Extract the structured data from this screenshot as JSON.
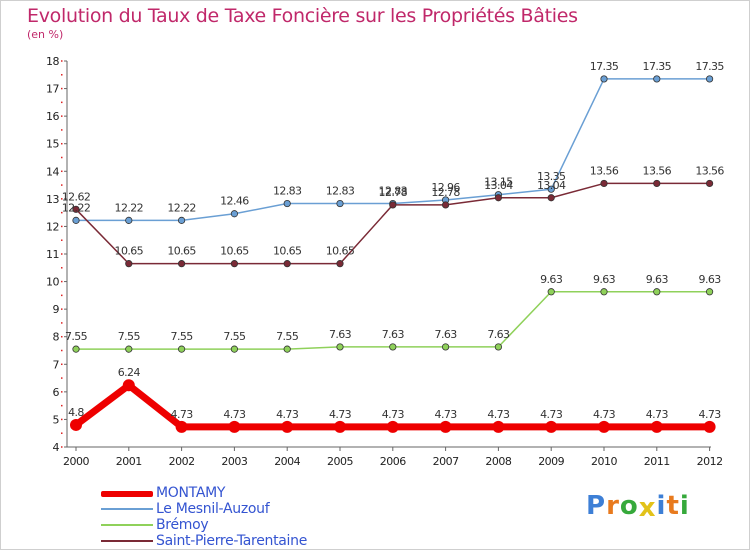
{
  "title": "Evolution du Taux de Taxe Foncière sur les Propriétés Bâties",
  "subtitle": "(en %)",
  "logo": {
    "letters": [
      {
        "ch": "P",
        "color": "#3d7fd6"
      },
      {
        "ch": "r",
        "color": "#e87a1e"
      },
      {
        "ch": "o",
        "color": "#36a93b"
      },
      {
        "ch": "x",
        "color": "#e2c21a"
      },
      {
        "ch": "i",
        "color": "#3d7fd6"
      },
      {
        "ch": "t",
        "color": "#e87a1e"
      },
      {
        "ch": "i",
        "color": "#36a93b"
      }
    ]
  },
  "chart_data": {
    "type": "line",
    "title": "Evolution du Taux de Taxe Foncière sur les Propriétés Bâties",
    "ylabel": "(en %)",
    "xlabel": "",
    "x": [
      "2000",
      "2001",
      "2002",
      "2003",
      "2004",
      "2005",
      "2006",
      "2007",
      "2008",
      "2009",
      "2010",
      "2011",
      "2012"
    ],
    "ylim": [
      4,
      18
    ],
    "yticks": [
      "4",
      "5",
      "6",
      "7",
      "8",
      "9",
      "10",
      "11",
      "12",
      "13",
      "14",
      "15",
      "16",
      "17",
      "18"
    ],
    "grid": false,
    "legend_position": "bottom-left",
    "series": [
      {
        "name": "MONTAMY",
        "color": "#ee0000",
        "values": [
          4.8,
          6.24,
          4.73,
          4.73,
          4.73,
          4.73,
          4.73,
          4.73,
          4.73,
          4.73,
          4.73,
          4.73,
          4.73
        ],
        "labels": [
          "4.8",
          "6.24",
          "4.73",
          "4.73",
          "4.73",
          "4.73",
          "4.73",
          "4.73",
          "4.73",
          "4.73",
          "4.73",
          "4.73",
          "4.73"
        ]
      },
      {
        "name": "Le Mesnil-Auzouf",
        "color": "#6a9fd4",
        "values": [
          12.22,
          12.22,
          12.22,
          12.46,
          12.83,
          12.83,
          12.83,
          12.96,
          13.15,
          13.35,
          17.35,
          17.35,
          17.35
        ],
        "labels": [
          "12.22",
          "12.22",
          "12.22",
          "12.46",
          "12.83",
          "12.83",
          "12.83",
          "12.96",
          "13.15",
          "13.35",
          "17.35",
          "17.35",
          "17.35"
        ]
      },
      {
        "name": "Brémoy",
        "color": "#8fd15a",
        "values": [
          7.55,
          7.55,
          7.55,
          7.55,
          7.55,
          7.63,
          7.63,
          7.63,
          7.63,
          9.63,
          9.63,
          9.63,
          9.63
        ],
        "labels": [
          "7.55",
          "7.55",
          "7.55",
          "7.55",
          "7.55",
          "7.63",
          "7.63",
          "7.63",
          "7.63",
          "9.63",
          "9.63",
          "9.63",
          "9.63"
        ]
      },
      {
        "name": "Saint-Pierre-Tarentaine",
        "color": "#7a2a36",
        "values": [
          12.62,
          10.65,
          10.65,
          10.65,
          10.65,
          10.65,
          12.78,
          12.78,
          13.04,
          13.04,
          13.56,
          13.56,
          13.56
        ],
        "labels": [
          "12.62",
          "10.65",
          "10.65",
          "10.65",
          "10.65",
          "10.65",
          "12.78",
          "12.78",
          "13.04",
          "13.04",
          "13.56",
          "13.56",
          "13.56"
        ]
      }
    ]
  }
}
